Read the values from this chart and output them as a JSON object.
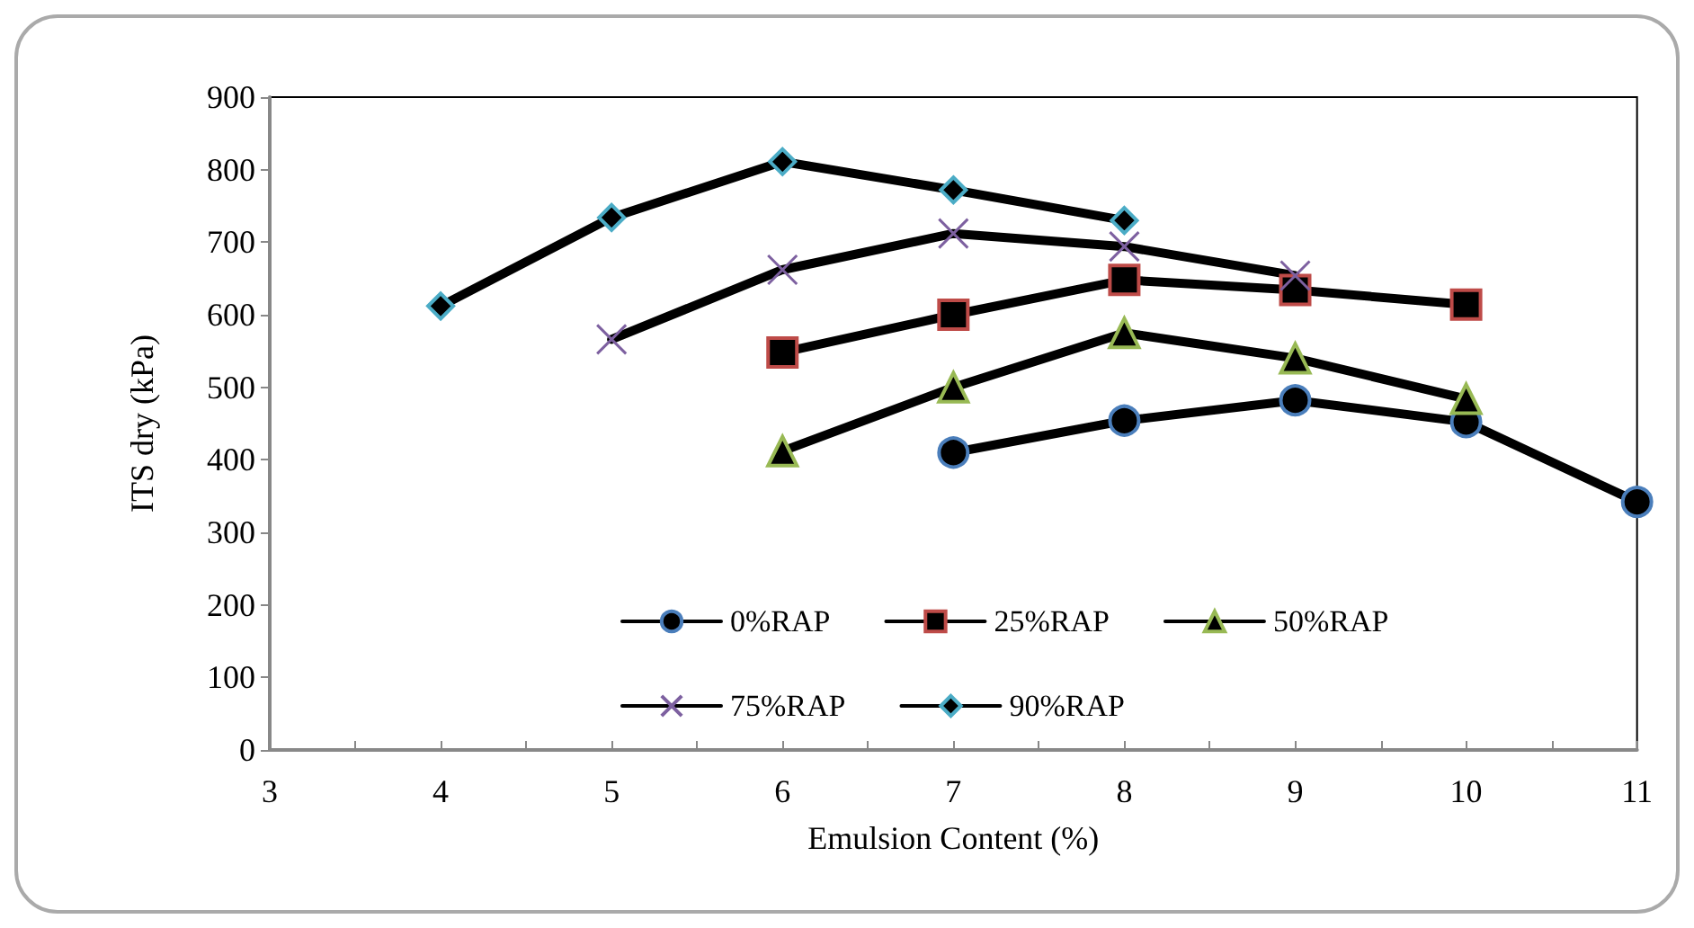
{
  "chart_data": {
    "type": "line",
    "xlabel": "Emulsion Content (%)",
    "ylabel": "ITS dry (kPa)",
    "xlim": [
      3,
      11
    ],
    "xticks": [
      3,
      {
        "value": 3.5,
        "label": null
      },
      4,
      {
        "value": 4.5,
        "label": null
      },
      5,
      {
        "value": 5.5,
        "label": null
      },
      6,
      {
        "value": 6.5,
        "label": null
      },
      7,
      {
        "value": 7.5,
        "label": null
      },
      8,
      {
        "value": 8.5,
        "label": null
      },
      9,
      {
        "value": 9.5,
        "label": null
      },
      10,
      {
        "value": 10.5,
        "label": null
      },
      11
    ],
    "ylim": [
      0,
      900
    ],
    "yticks": [
      0,
      100,
      200,
      300,
      400,
      500,
      600,
      700,
      800,
      900
    ],
    "grid": false,
    "legend": "bottom",
    "line_style": "solid",
    "series": [
      {
        "name": "0%RAP",
        "color": "#4a7ebb",
        "marker": "circle",
        "x": [
          7,
          8,
          9,
          10,
          11
        ],
        "values": [
          410,
          454,
          482,
          452,
          342
        ]
      },
      {
        "name": "25%RAP",
        "color": "#be4b48",
        "marker": "square",
        "x": [
          6,
          7,
          8,
          9,
          10
        ],
        "values": [
          548,
          600,
          648,
          634,
          614
        ]
      },
      {
        "name": "50%RAP",
        "color": "#98b954",
        "marker": "triangle",
        "x": [
          6,
          7,
          8,
          9,
          10
        ],
        "values": [
          412,
          500,
          575,
          540,
          484
        ]
      },
      {
        "name": "75%RAP",
        "color": "#7d60a0",
        "marker": "cross",
        "x": [
          5,
          6,
          7,
          8,
          9
        ],
        "values": [
          566,
          662,
          712,
          694,
          654
        ]
      },
      {
        "name": "90%RAP",
        "color": "#4bacc6",
        "marker": "diamond",
        "x": [
          4,
          5,
          6,
          7,
          8
        ],
        "values": [
          612,
          734,
          811,
          772,
          730
        ]
      }
    ]
  }
}
